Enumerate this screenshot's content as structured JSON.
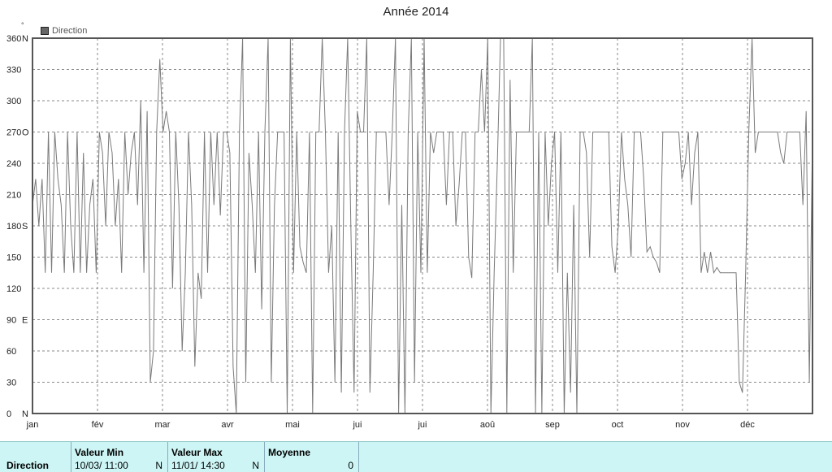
{
  "chart_data": {
    "type": "line",
    "title": "Année 2014",
    "unit_mark": "°",
    "legend": [
      "Direction"
    ],
    "ylim": [
      0,
      360
    ],
    "grid": true,
    "y_ticks": [
      {
        "v": 0,
        "label": "0"
      },
      {
        "v": 30,
        "label": "30"
      },
      {
        "v": 60,
        "label": "60"
      },
      {
        "v": 90,
        "label": "90"
      },
      {
        "v": 120,
        "label": "120"
      },
      {
        "v": 150,
        "label": "150"
      },
      {
        "v": 180,
        "label": "180"
      },
      {
        "v": 210,
        "label": "210"
      },
      {
        "v": 240,
        "label": "240"
      },
      {
        "v": 270,
        "label": "270"
      },
      {
        "v": 300,
        "label": "300"
      },
      {
        "v": 330,
        "label": "330"
      },
      {
        "v": 360,
        "label": "360"
      }
    ],
    "y_compass": [
      {
        "v": 0,
        "label": "N"
      },
      {
        "v": 90,
        "label": "E"
      },
      {
        "v": 180,
        "label": "S"
      },
      {
        "v": 270,
        "label": "O"
      },
      {
        "v": 360,
        "label": "N"
      }
    ],
    "x_ticks": [
      "jan",
      "fév",
      "mar",
      "avr",
      "mai",
      "jui",
      "jui",
      "aoû",
      "sep",
      "oct",
      "nov",
      "déc"
    ],
    "series": [
      {
        "name": "Direction",
        "color": "#7a7a7a",
        "x_start": "2014-01-01",
        "x_end": "2014-12-31",
        "values": [
          200,
          225,
          180,
          225,
          135,
          270,
          135,
          270,
          225,
          200,
          135,
          270,
          180,
          135,
          270,
          135,
          250,
          135,
          200,
          225,
          135,
          270,
          250,
          180,
          270,
          250,
          180,
          225,
          135,
          270,
          210,
          250,
          270,
          200,
          300,
          135,
          290,
          30,
          60,
          270,
          340,
          270,
          290,
          270,
          120,
          270,
          200,
          60,
          135,
          270,
          200,
          45,
          135,
          110,
          270,
          135,
          270,
          200,
          270,
          190,
          270,
          270,
          250,
          45,
          0,
          270,
          360,
          30,
          250,
          200,
          135,
          270,
          100,
          270,
          360,
          30,
          200,
          270,
          270,
          270,
          0,
          360,
          135,
          270,
          160,
          145,
          135,
          270,
          0,
          270,
          270,
          360,
          270,
          135,
          180,
          30,
          270,
          20,
          270,
          360,
          180,
          20,
          290,
          270,
          270,
          360,
          20,
          135,
          270,
          270,
          270,
          270,
          200,
          270,
          360,
          0,
          200,
          0,
          270,
          360,
          30,
          270,
          135,
          360,
          135,
          270,
          250,
          270,
          270,
          270,
          200,
          270,
          270,
          180,
          220,
          270,
          270,
          150,
          130,
          270,
          270,
          330,
          270,
          360,
          0,
          135,
          240,
          360,
          360,
          0,
          320,
          135,
          270,
          270,
          270,
          270,
          270,
          360,
          0,
          270,
          0,
          270,
          180,
          240,
          270,
          135,
          270,
          0,
          135,
          20,
          200,
          0,
          270,
          270,
          250,
          150,
          270,
          270,
          270,
          270,
          270,
          270,
          160,
          135,
          180,
          270,
          225,
          200,
          150,
          270,
          270,
          270,
          225,
          155,
          160,
          150,
          145,
          135,
          270,
          270,
          270,
          270,
          270,
          270,
          225,
          240,
          270,
          200,
          250,
          270,
          135,
          155,
          135,
          155,
          135,
          140,
          135,
          135,
          135,
          135,
          135,
          135,
          30,
          20,
          135,
          270,
          360,
          250,
          270,
          270,
          270,
          270,
          270,
          270,
          270,
          250,
          240,
          270,
          270,
          270,
          270,
          270,
          200,
          290,
          30,
          270
        ]
      }
    ]
  },
  "stats": {
    "row_label": "Direction",
    "columns": [
      {
        "header": "Valeur Min",
        "value": "10/03/  11:00",
        "unit": "N"
      },
      {
        "header": "Valeur Max",
        "value": "11/01/  14:30",
        "unit": "N"
      },
      {
        "header": "Moyenne",
        "value": "0",
        "unit": ""
      }
    ]
  }
}
